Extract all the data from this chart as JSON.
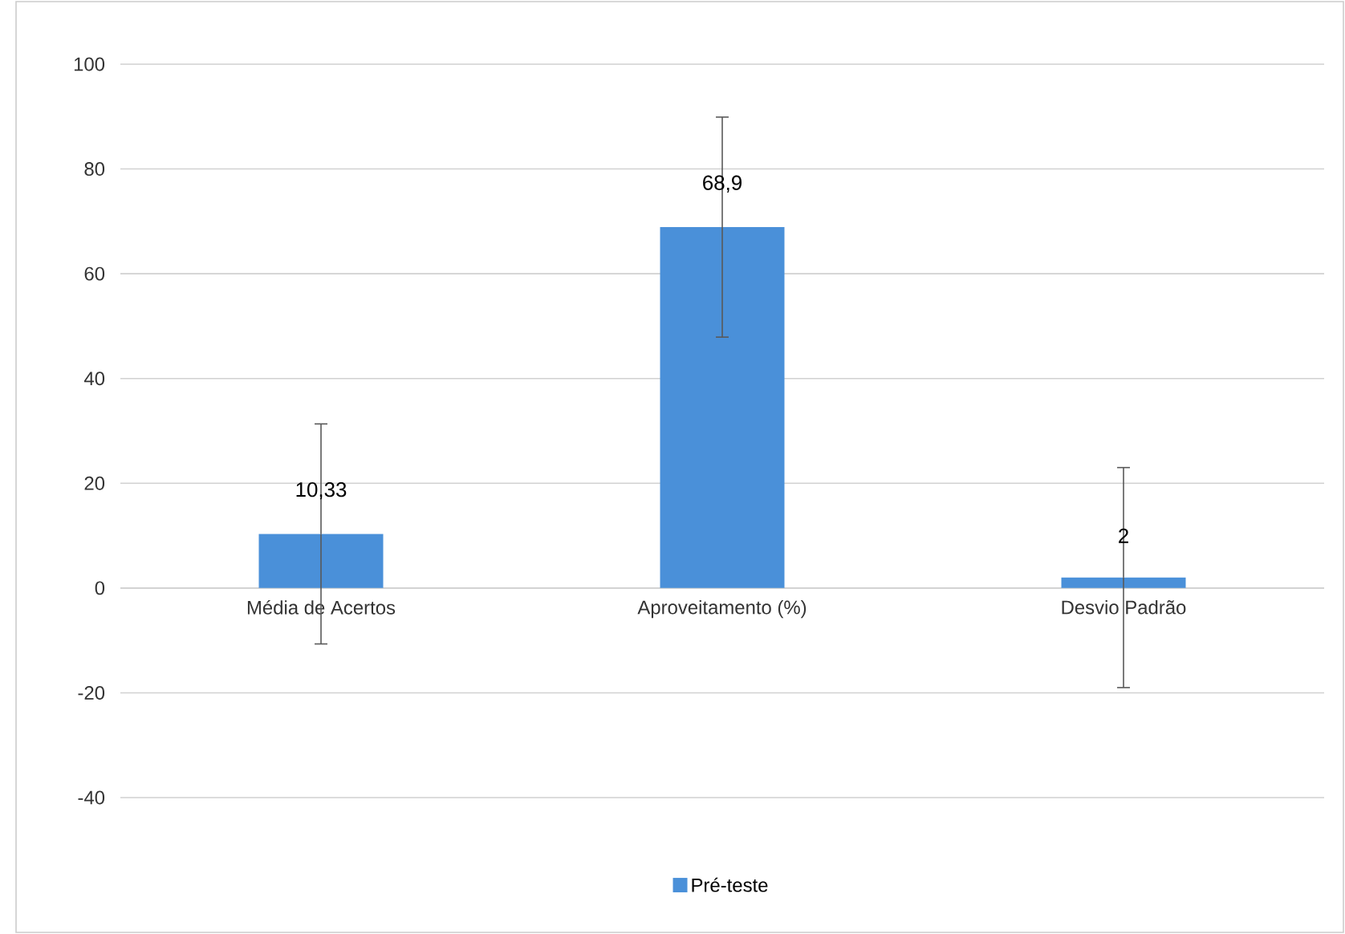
{
  "chart_data": {
    "type": "bar",
    "categories": [
      "Média de Acertos",
      "Aproveitamento (%)",
      "Desvio Padrão"
    ],
    "series": [
      {
        "name": "Pré-teste",
        "color": "#4a90d9",
        "values": [
          10.33,
          68.9,
          2
        ],
        "errors": [
          21,
          21,
          21
        ],
        "value_labels": [
          "10,33",
          "68,9",
          "2"
        ]
      }
    ],
    "ylim": [
      -40,
      100
    ],
    "yticks": [
      -40,
      -20,
      0,
      20,
      40,
      60,
      80,
      100
    ],
    "grid": "y",
    "legend": "bottom"
  }
}
